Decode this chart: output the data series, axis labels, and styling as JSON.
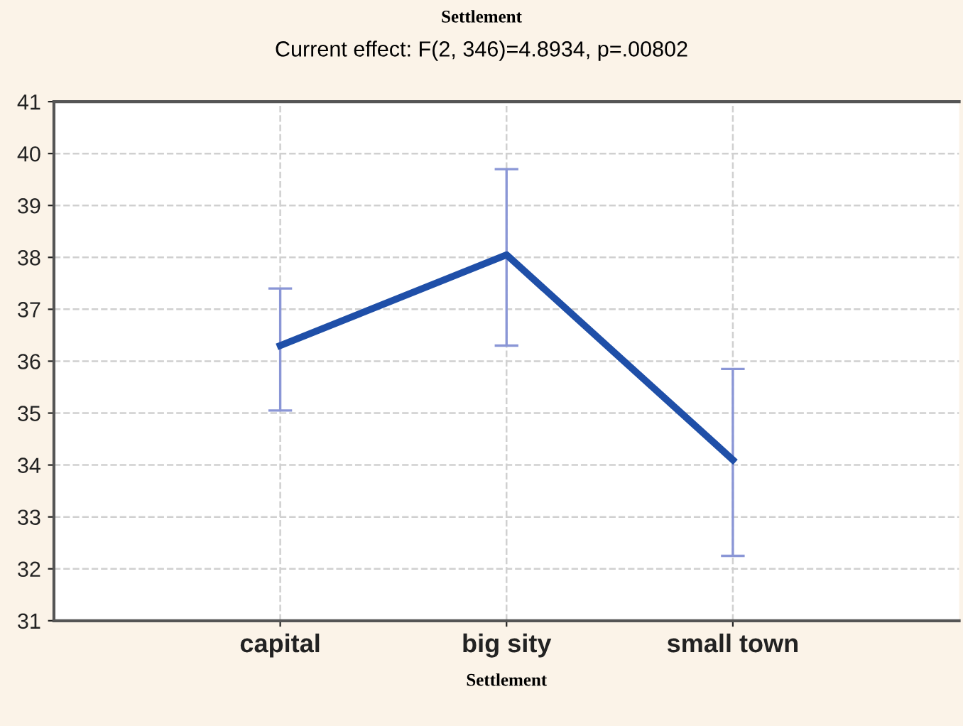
{
  "chart_data": {
    "type": "line",
    "title": "Settlement",
    "subtitle": "Current effect: F(2, 346)=4.8934, p=.00802",
    "xlabel": "Settlement",
    "categories": [
      "capital",
      "big sity",
      "small town"
    ],
    "series": [
      {
        "color": "#1f4fa8",
        "values": [
          36.3,
          38.05,
          34.1
        ],
        "errors": [
          [
            35.05,
            37.4
          ],
          [
            36.3,
            39.7
          ],
          [
            32.25,
            35.85
          ]
        ]
      }
    ],
    "ylim": [
      31,
      41
    ],
    "yticks": [
      31,
      32,
      33,
      34,
      35,
      36,
      37,
      38,
      39,
      40,
      41
    ],
    "grid": true,
    "marker": "none",
    "line_style": "solid"
  }
}
